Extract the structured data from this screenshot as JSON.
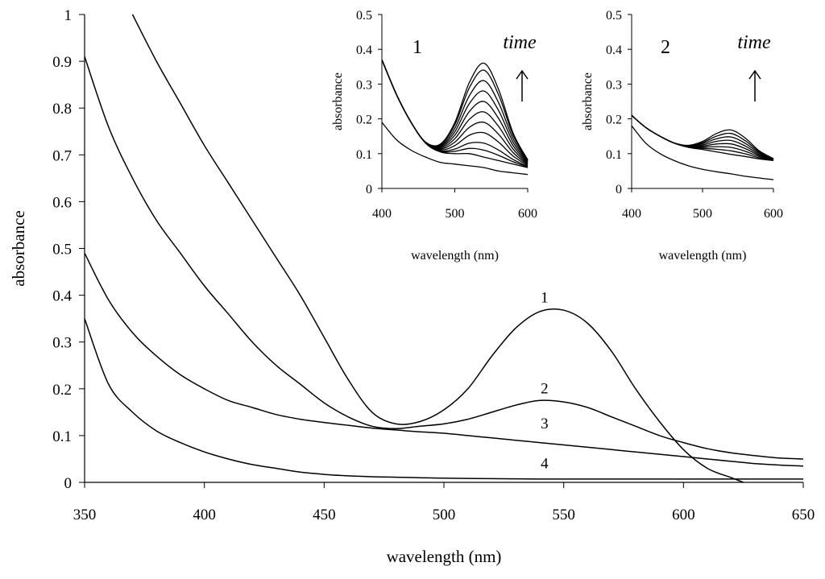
{
  "chart_data": [
    {
      "type": "line",
      "title": "",
      "xlabel": "wavelength (nm)",
      "ylabel": "absorbance",
      "xlim": [
        350,
        650
      ],
      "ylim": [
        0,
        1
      ],
      "x_ticks": [
        "350",
        "400",
        "450",
        "500",
        "550",
        "600",
        "650"
      ],
      "y_ticks": [
        "0",
        "0.1",
        "0.2",
        "0.3",
        "0.4",
        "0.5",
        "0.6",
        "0.7",
        "0.8",
        "0.9",
        "1"
      ],
      "grid": false,
      "series": [
        {
          "name": "1",
          "x": [
            370,
            380,
            390,
            400,
            410,
            420,
            430,
            440,
            450,
            460,
            470,
            480,
            490,
            500,
            510,
            520,
            530,
            540,
            550,
            560,
            570,
            580,
            590,
            600,
            610,
            620,
            625
          ],
          "y": [
            1.0,
            0.9,
            0.81,
            0.72,
            0.64,
            0.56,
            0.48,
            0.4,
            0.31,
            0.22,
            0.15,
            0.125,
            0.13,
            0.155,
            0.2,
            0.27,
            0.33,
            0.365,
            0.368,
            0.34,
            0.28,
            0.2,
            0.13,
            0.07,
            0.03,
            0.01,
            0.0
          ]
        },
        {
          "name": "2",
          "x": [
            350,
            360,
            370,
            380,
            390,
            400,
            410,
            420,
            430,
            440,
            450,
            460,
            470,
            480,
            490,
            500,
            510,
            520,
            530,
            540,
            550,
            560,
            570,
            580,
            590,
            600,
            610,
            620,
            630,
            640,
            650
          ],
          "y": [
            0.91,
            0.76,
            0.65,
            0.56,
            0.49,
            0.42,
            0.36,
            0.3,
            0.25,
            0.21,
            0.17,
            0.14,
            0.12,
            0.115,
            0.12,
            0.125,
            0.135,
            0.15,
            0.165,
            0.175,
            0.172,
            0.16,
            0.14,
            0.12,
            0.1,
            0.085,
            0.072,
            0.063,
            0.057,
            0.052,
            0.05
          ]
        },
        {
          "name": "3",
          "x": [
            350,
            360,
            370,
            380,
            390,
            400,
            410,
            420,
            430,
            440,
            450,
            460,
            470,
            480,
            490,
            500,
            510,
            520,
            530,
            540,
            550,
            560,
            570,
            580,
            590,
            600,
            610,
            620,
            630,
            640,
            650
          ],
          "y": [
            0.49,
            0.39,
            0.32,
            0.27,
            0.23,
            0.2,
            0.175,
            0.16,
            0.145,
            0.135,
            0.128,
            0.122,
            0.116,
            0.112,
            0.108,
            0.105,
            0.1,
            0.095,
            0.09,
            0.085,
            0.08,
            0.075,
            0.07,
            0.065,
            0.06,
            0.055,
            0.05,
            0.045,
            0.04,
            0.037,
            0.035
          ]
        },
        {
          "name": "4",
          "x": [
            350,
            360,
            370,
            380,
            390,
            400,
            410,
            420,
            430,
            440,
            450,
            460,
            470,
            480,
            490,
            500,
            520,
            540,
            560,
            580,
            600,
            620,
            650
          ],
          "y": [
            0.35,
            0.21,
            0.15,
            0.11,
            0.085,
            0.065,
            0.05,
            0.038,
            0.03,
            0.022,
            0.017,
            0.014,
            0.012,
            0.011,
            0.01,
            0.009,
            0.008,
            0.007,
            0.007,
            0.007,
            0.007,
            0.007,
            0.007
          ]
        }
      ]
    },
    {
      "type": "line",
      "title": "1",
      "annotation": "time",
      "xlabel": "wavelength (nm)",
      "ylabel": "absorbance",
      "xlim": [
        400,
        600
      ],
      "ylim": [
        0,
        0.5
      ],
      "x_ticks": [
        "400",
        "500",
        "600"
      ],
      "y_ticks": [
        "0",
        "0.1",
        "0.2",
        "0.3",
        "0.4",
        "0.5"
      ],
      "grid": false,
      "x": [
        400,
        420,
        440,
        460,
        480,
        500,
        520,
        540,
        560,
        580,
        600
      ],
      "base": [
        0.37,
        0.27,
        0.19,
        0.13,
        0.105,
        0.1,
        0.1,
        0.09,
        0.08,
        0.07,
        0.06
      ],
      "peak_heights_at_540": [
        0.0,
        0.02,
        0.04,
        0.07,
        0.1,
        0.13,
        0.16,
        0.19,
        0.22,
        0.25,
        0.27
      ],
      "lowest_trace": {
        "x": [
          400,
          420,
          440,
          460,
          480,
          500,
          520,
          540,
          560,
          580,
          600
        ],
        "y": [
          0.19,
          0.14,
          0.11,
          0.09,
          0.075,
          0.07,
          0.065,
          0.06,
          0.05,
          0.045,
          0.04
        ]
      }
    },
    {
      "type": "line",
      "title": "2",
      "annotation": "time",
      "xlabel": "wavelength (nm)",
      "ylabel": "absorbance",
      "xlim": [
        400,
        600
      ],
      "ylim": [
        0,
        0.5
      ],
      "x_ticks": [
        "400",
        "500",
        "600"
      ],
      "y_ticks": [
        "0",
        "0.1",
        "0.2",
        "0.3",
        "0.4",
        "0.5"
      ],
      "grid": false,
      "x": [
        400,
        420,
        440,
        460,
        480,
        500,
        520,
        540,
        560,
        580,
        600
      ],
      "base": [
        0.21,
        0.175,
        0.15,
        0.13,
        0.118,
        0.112,
        0.105,
        0.098,
        0.092,
        0.085,
        0.08
      ],
      "peak_heights_at_540": [
        0.0,
        0.01,
        0.02,
        0.03,
        0.04,
        0.05,
        0.06,
        0.07
      ],
      "lowest_trace": {
        "x": [
          400,
          420,
          440,
          460,
          480,
          500,
          520,
          540,
          560,
          580,
          600
        ],
        "y": [
          0.18,
          0.13,
          0.1,
          0.08,
          0.065,
          0.055,
          0.048,
          0.042,
          0.035,
          0.03,
          0.025
        ]
      }
    }
  ]
}
